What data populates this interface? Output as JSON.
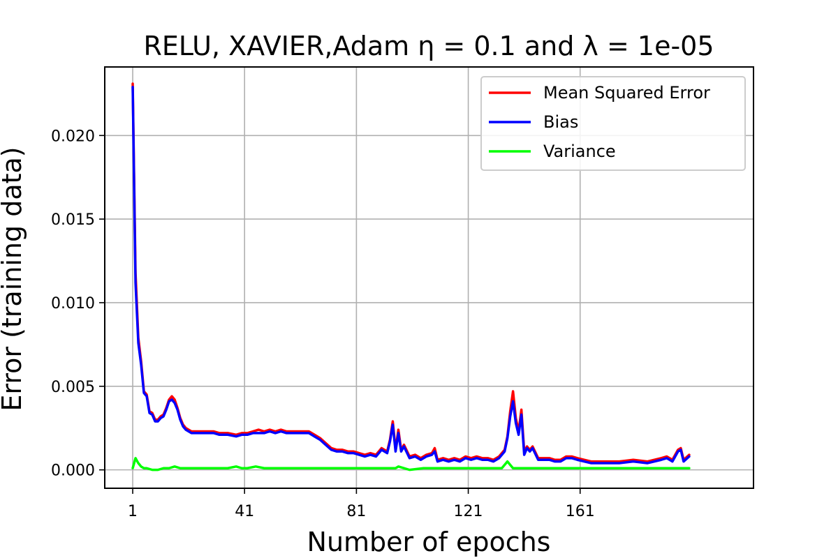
{
  "chart_data": {
    "type": "line",
    "title": "RELU, XAVIER,Adam η = 0.1 and λ = 1e-05",
    "xlabel": "Number of epochs",
    "ylabel": "Error (training data)",
    "xlim": [
      -9,
      223
    ],
    "ylim": [
      -0.0011,
      0.0241
    ],
    "x_ticks": [
      1,
      41,
      81,
      121,
      161
    ],
    "y_ticks": [
      0.0,
      0.005,
      0.01,
      0.015,
      0.02
    ],
    "y_tick_labels": [
      "0.000",
      "0.005",
      "0.010",
      "0.015",
      "0.020"
    ],
    "grid": true,
    "legend_position": "top-right",
    "colors": {
      "mse": "#ff0000",
      "bias": "#0000ff",
      "variance": "#00ff00"
    },
    "series": [
      {
        "name": "Mean Squared Error",
        "color": "#ff0000",
        "x": [
          1,
          2,
          3,
          4,
          5,
          6,
          7,
          8,
          9,
          10,
          11,
          12,
          13,
          14,
          15,
          16,
          17,
          18,
          19,
          20,
          22,
          25,
          28,
          30,
          32,
          35,
          38,
          40,
          42,
          44,
          46,
          48,
          50,
          52,
          54,
          56,
          58,
          60,
          62,
          64,
          66,
          68,
          70,
          72,
          74,
          76,
          78,
          80,
          82,
          84,
          86,
          88,
          90,
          92,
          93,
          94,
          95,
          96,
          97,
          98,
          100,
          102,
          104,
          106,
          108,
          109,
          110,
          112,
          114,
          116,
          118,
          120,
          122,
          124,
          126,
          128,
          130,
          132,
          134,
          135,
          136,
          137,
          138,
          139,
          140,
          141,
          142,
          143,
          144,
          146,
          148,
          150,
          152,
          154,
          156,
          158,
          160,
          165,
          170,
          175,
          180,
          185,
          190,
          192,
          194,
          196,
          197,
          198,
          200
        ],
        "values": [
          0.0231,
          0.0118,
          0.0079,
          0.0065,
          0.0047,
          0.0045,
          0.0035,
          0.0034,
          0.003,
          0.003,
          0.0032,
          0.0033,
          0.0037,
          0.0042,
          0.0044,
          0.0042,
          0.0037,
          0.0031,
          0.0027,
          0.0025,
          0.0023,
          0.0023,
          0.0023,
          0.0023,
          0.0022,
          0.0022,
          0.0021,
          0.0022,
          0.0022,
          0.0023,
          0.0024,
          0.0023,
          0.0024,
          0.0023,
          0.0024,
          0.0023,
          0.0023,
          0.0023,
          0.0023,
          0.0023,
          0.0021,
          0.0019,
          0.0016,
          0.0013,
          0.0012,
          0.0012,
          0.0011,
          0.0011,
          0.001,
          0.0009,
          0.001,
          0.0009,
          0.0013,
          0.0011,
          0.0018,
          0.0029,
          0.0012,
          0.0024,
          0.0012,
          0.0015,
          0.0008,
          0.0009,
          0.0007,
          0.0009,
          0.001,
          0.0013,
          0.0006,
          0.0007,
          0.0006,
          0.0007,
          0.0006,
          0.0008,
          0.0007,
          0.0008,
          0.0007,
          0.0007,
          0.0006,
          0.0008,
          0.0012,
          0.002,
          0.0035,
          0.0047,
          0.0031,
          0.0023,
          0.0036,
          0.0011,
          0.0014,
          0.0012,
          0.0014,
          0.0007,
          0.0007,
          0.0007,
          0.0006,
          0.0006,
          0.0008,
          0.0008,
          0.0007,
          0.0005,
          0.0005,
          0.0005,
          0.0006,
          0.0005,
          0.0007,
          0.0008,
          0.0006,
          0.0012,
          0.0013,
          0.0006,
          0.0009
        ]
      },
      {
        "name": "Bias",
        "color": "#0000ff",
        "x": [
          1,
          2,
          3,
          4,
          5,
          6,
          7,
          8,
          9,
          10,
          11,
          12,
          13,
          14,
          15,
          16,
          17,
          18,
          19,
          20,
          22,
          25,
          28,
          30,
          32,
          35,
          38,
          40,
          42,
          44,
          46,
          48,
          50,
          52,
          54,
          56,
          58,
          60,
          62,
          64,
          66,
          68,
          70,
          72,
          74,
          76,
          78,
          80,
          82,
          84,
          86,
          88,
          90,
          92,
          93,
          94,
          95,
          96,
          97,
          98,
          100,
          102,
          104,
          106,
          108,
          109,
          110,
          112,
          114,
          116,
          118,
          120,
          122,
          124,
          126,
          128,
          130,
          132,
          134,
          135,
          136,
          137,
          138,
          139,
          140,
          141,
          142,
          143,
          144,
          146,
          148,
          150,
          152,
          154,
          156,
          158,
          160,
          165,
          170,
          175,
          180,
          185,
          190,
          192,
          194,
          196,
          197,
          198,
          200
        ],
        "values": [
          0.0229,
          0.0112,
          0.0076,
          0.0063,
          0.0046,
          0.0044,
          0.0034,
          0.0033,
          0.0029,
          0.0029,
          0.0031,
          0.0032,
          0.0036,
          0.0041,
          0.0042,
          0.004,
          0.0036,
          0.003,
          0.0026,
          0.0024,
          0.0022,
          0.0022,
          0.0022,
          0.0022,
          0.0021,
          0.0021,
          0.002,
          0.0021,
          0.0021,
          0.0022,
          0.0022,
          0.0022,
          0.0023,
          0.0022,
          0.0023,
          0.0022,
          0.0022,
          0.0022,
          0.0022,
          0.0022,
          0.002,
          0.0018,
          0.0015,
          0.0012,
          0.0011,
          0.0011,
          0.001,
          0.001,
          0.0009,
          0.0008,
          0.0009,
          0.0008,
          0.0012,
          0.001,
          0.0017,
          0.0027,
          0.0011,
          0.0022,
          0.0011,
          0.0014,
          0.0007,
          0.0008,
          0.0006,
          0.0008,
          0.0009,
          0.0011,
          0.0005,
          0.0006,
          0.0005,
          0.0006,
          0.0005,
          0.0007,
          0.0006,
          0.0007,
          0.0006,
          0.0006,
          0.0005,
          0.0007,
          0.0011,
          0.0019,
          0.0032,
          0.0041,
          0.0028,
          0.0021,
          0.0033,
          0.0009,
          0.0013,
          0.0011,
          0.0013,
          0.0006,
          0.0006,
          0.0006,
          0.0005,
          0.0005,
          0.0007,
          0.0007,
          0.0006,
          0.0004,
          0.0004,
          0.0004,
          0.0005,
          0.0004,
          0.0006,
          0.0007,
          0.0005,
          0.0011,
          0.0012,
          0.0005,
          0.0008
        ]
      },
      {
        "name": "Variance",
        "color": "#00ff00",
        "x": [
          1,
          2,
          3,
          4,
          5,
          6,
          8,
          10,
          12,
          14,
          16,
          18,
          20,
          25,
          30,
          35,
          38,
          40,
          42,
          45,
          48,
          50,
          55,
          60,
          65,
          70,
          75,
          80,
          85,
          90,
          95,
          96,
          100,
          105,
          110,
          115,
          120,
          125,
          130,
          133,
          135,
          136,
          137,
          140,
          145,
          150,
          155,
          160,
          165,
          170,
          175,
          180,
          185,
          190,
          195,
          200
        ],
        "values": [
          0.0001,
          0.0007,
          0.0004,
          0.0002,
          0.0001,
          0.0001,
          0.0,
          0.0,
          0.0001,
          0.0001,
          0.0002,
          0.0001,
          0.0001,
          0.0001,
          0.0001,
          0.0001,
          0.0002,
          0.0001,
          0.0001,
          0.0002,
          0.0001,
          0.0001,
          0.0001,
          0.0001,
          0.0001,
          0.0001,
          0.0001,
          0.0001,
          0.0001,
          0.0001,
          0.0001,
          0.0002,
          0.0,
          0.0001,
          0.0001,
          0.0001,
          0.0001,
          0.0001,
          0.0001,
          0.0001,
          0.0005,
          0.0003,
          0.0001,
          0.0001,
          0.0001,
          0.0001,
          0.0001,
          0.0001,
          0.0001,
          0.0001,
          0.0001,
          0.0001,
          0.0001,
          0.0001,
          0.0001,
          0.0001
        ]
      }
    ]
  }
}
